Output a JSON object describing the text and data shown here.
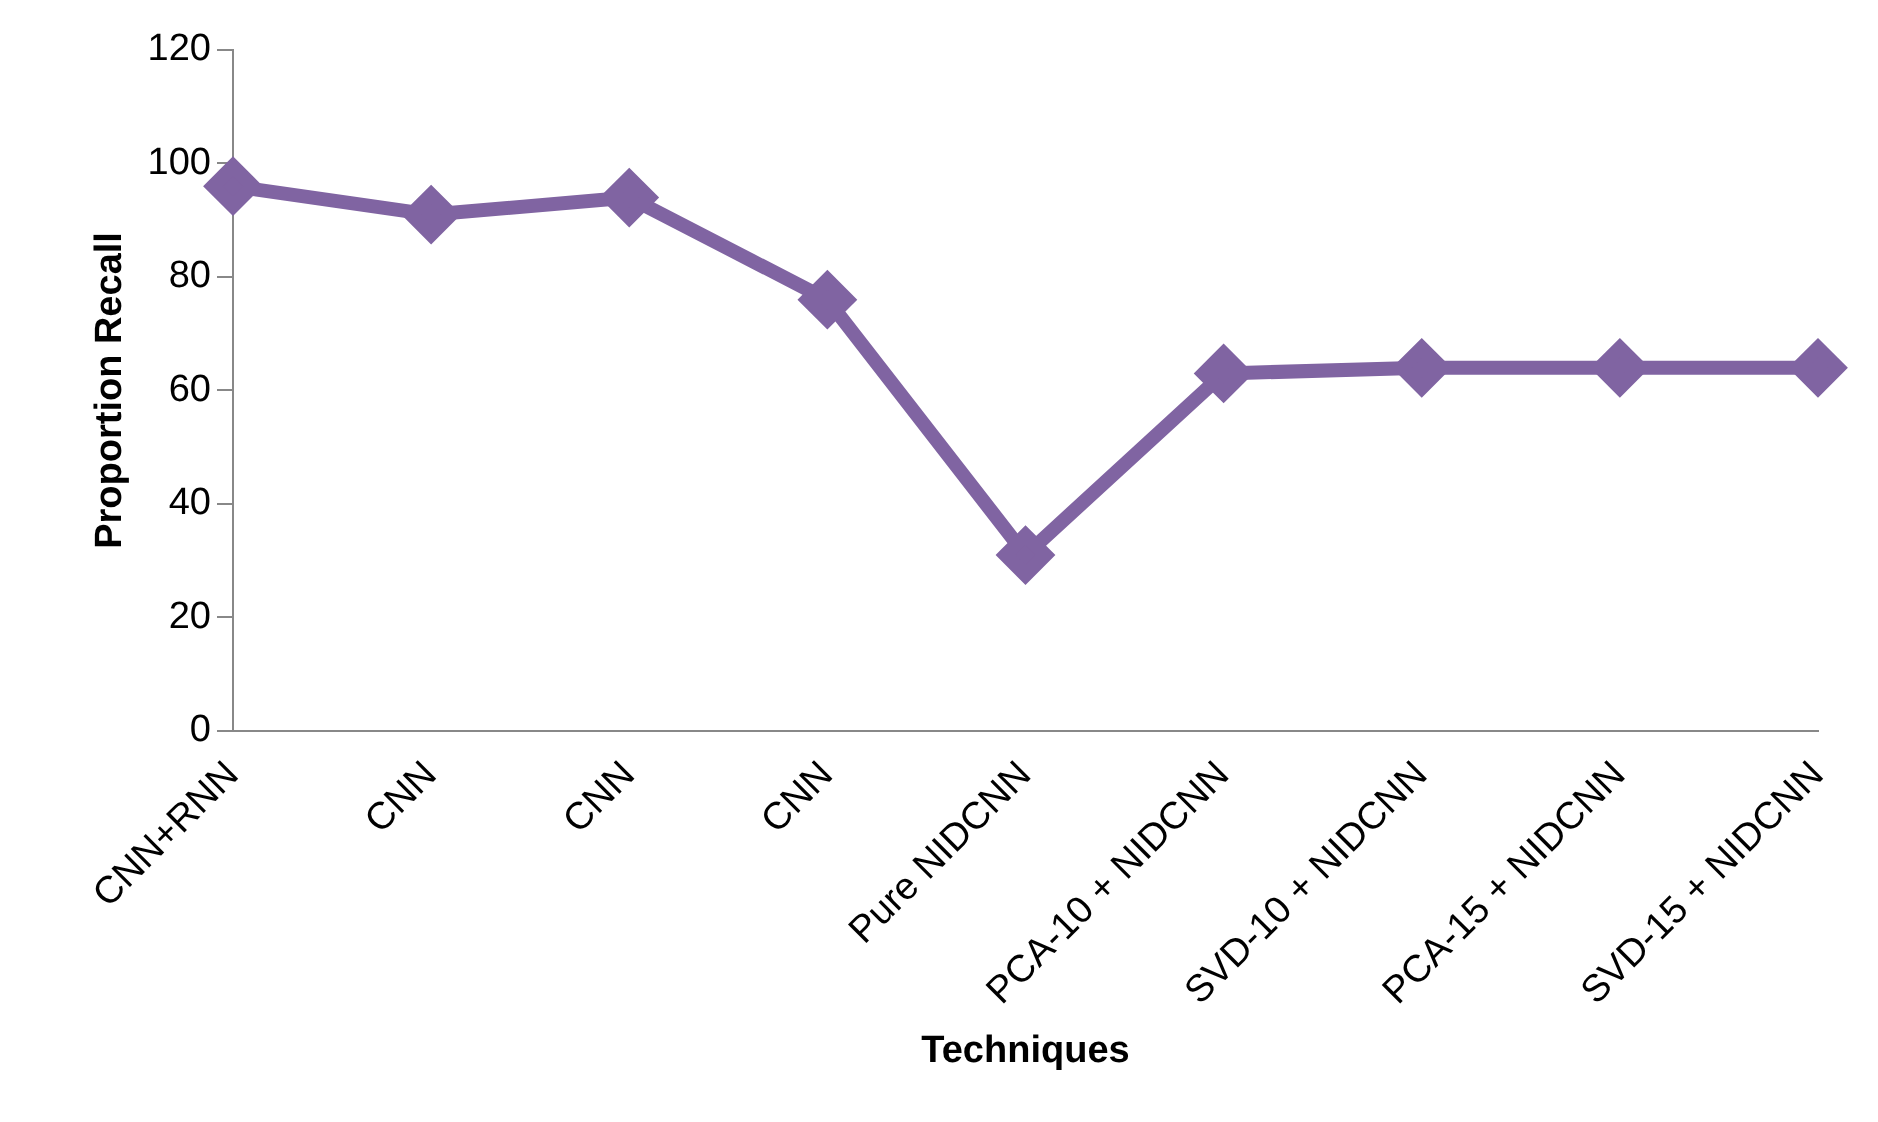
{
  "chart_data": {
    "type": "line",
    "xlabel": "Techniques",
    "ylabel": "Proportion Recall",
    "categories": [
      "CNN+RNN",
      "CNN",
      "CNN",
      "CNN",
      "Pure NIDCNN",
      "PCA-10 + NIDCNN",
      "SVD-10 + NIDCNN",
      "PCA-15 + NIDCNN",
      "SVD-15 + NIDCNN"
    ],
    "values": [
      96,
      91,
      94,
      76,
      31,
      63,
      64,
      64,
      64
    ],
    "color": "#8064a2",
    "ylim": [
      0,
      120
    ],
    "yticks": [
      0,
      20,
      40,
      60,
      80,
      100,
      120
    ],
    "grid": false,
    "legend": false,
    "marker": "diamond",
    "line_style": "solid"
  }
}
